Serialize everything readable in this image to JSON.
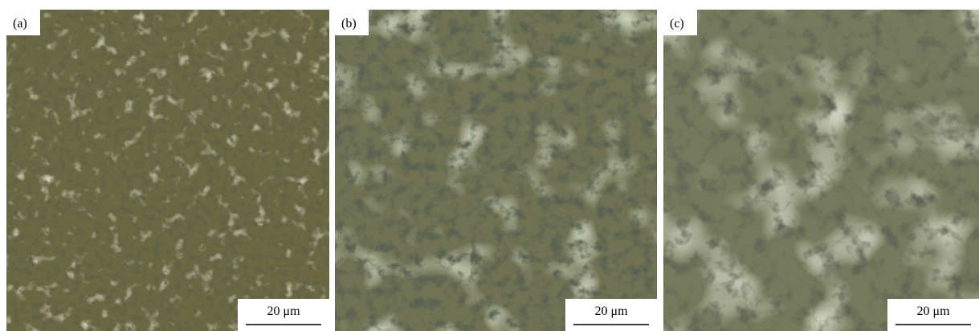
{
  "panels": [
    {
      "label": "(a)",
      "scale_bar": "20 μm"
    },
    {
      "label": "(b)",
      "scale_bar": "20 μm"
    },
    {
      "label": "(c)",
      "scale_bar": "20 μm"
    }
  ]
}
